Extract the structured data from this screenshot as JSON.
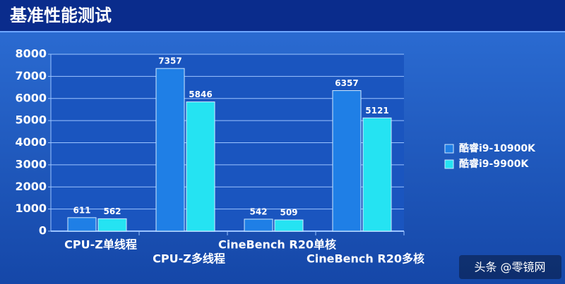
{
  "chart_data": {
    "type": "bar",
    "title": "基准性能测试",
    "categories": [
      "CPU-Z单线程",
      "CPU-Z多线程",
      "CineBench R20单核",
      "CineBench R20多核"
    ],
    "series": [
      {
        "name": "酷睿i9-10900K",
        "color": "#1f7fe6",
        "values": [
          611,
          7357,
          542,
          6357
        ]
      },
      {
        "name": "酷睿i9-9900K",
        "color": "#25e3f2",
        "values": [
          562,
          5846,
          509,
          5121
        ]
      }
    ],
    "ylim": [
      0,
      8000
    ],
    "yticks": [
      0,
      1000,
      2000,
      3000,
      4000,
      5000,
      6000,
      7000,
      8000
    ],
    "grid": true,
    "legend": "right"
  },
  "watermark": "头条 @零镜网"
}
